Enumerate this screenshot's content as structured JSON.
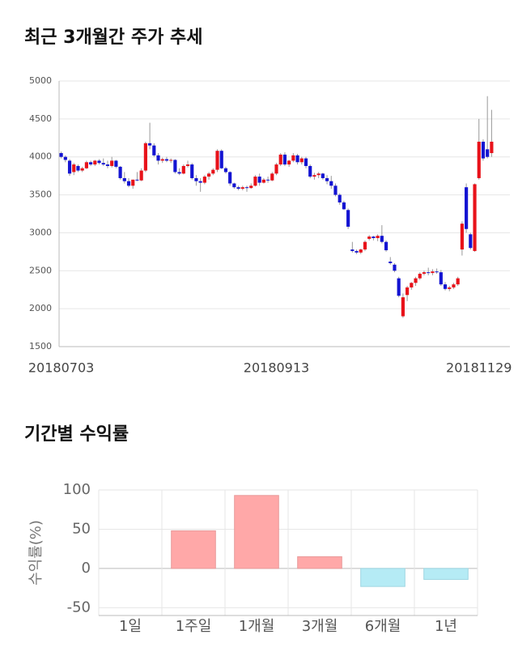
{
  "chart_data": [
    {
      "type": "candlestick",
      "title": "최근 3개월간 주가 추세",
      "categories": [
        "20180703",
        null,
        null,
        null,
        null,
        null,
        null,
        null,
        null,
        null,
        null,
        null,
        null,
        null,
        null,
        null,
        null,
        null,
        null,
        null,
        null,
        null,
        null,
        null,
        null,
        null,
        null,
        null,
        null,
        null,
        null,
        null,
        null,
        null,
        null,
        null,
        null,
        null,
        null,
        null,
        null,
        null,
        null,
        null,
        null,
        null,
        null,
        null,
        null,
        null,
        null,
        "20180913",
        null,
        null,
        null,
        null,
        null,
        null,
        null,
        null,
        null,
        null,
        null,
        null,
        null,
        null,
        null,
        null,
        null,
        null,
        null,
        null,
        null,
        null,
        null,
        null,
        null,
        null,
        null,
        null,
        null,
        null,
        null,
        null,
        null,
        null,
        null,
        null,
        null,
        null,
        null,
        null,
        null,
        null,
        null,
        null,
        null,
        null,
        null,
        "20181129",
        null,
        null,
        null
      ],
      "open": [
        4050,
        4000,
        3950,
        3800,
        3880,
        3820,
        3850,
        3930,
        3900,
        3950,
        3920,
        3900,
        3880,
        3950,
        3870,
        3720,
        3680,
        3620,
        3700,
        3690,
        3820,
        4180,
        4150,
        4020,
        3950,
        3970,
        3950,
        3960,
        3800,
        3780,
        3880,
        3900,
        3720,
        3680,
        3660,
        3740,
        3780,
        3830,
        4080,
        3850,
        3800,
        3650,
        3600,
        3580,
        3600,
        3590,
        3620,
        3740,
        3660,
        3700,
        3690,
        3780,
        3900,
        4030,
        3900,
        3950,
        4020,
        3930,
        3980,
        3880,
        3740,
        3760,
        3780,
        3720,
        3680,
        3620,
        3500,
        3400,
        3300,
        2780,
        2760,
        2740,
        2780,
        2920,
        2950,
        2930,
        2960,
        2880,
        2620,
        2580,
        2400,
        1900,
        2180,
        2280,
        2340,
        2400,
        2460,
        2480,
        2470,
        2490,
        2480,
        2320,
        2260,
        2280,
        2320,
        2780,
        3600,
        2980,
        2760,
        3720,
        4200,
        4100,
        4050
      ],
      "high": [
        4070,
        4020,
        3970,
        3920,
        3900,
        3870,
        3950,
        3950,
        3960,
        3970,
        3980,
        3950,
        4000,
        3960,
        3880,
        3800,
        3720,
        3700,
        3800,
        3850,
        4200,
        4450,
        4180,
        4050,
        3990,
        4000,
        3980,
        3970,
        3850,
        3900,
        3950,
        3920,
        3760,
        3720,
        3760,
        3800,
        3850,
        4100,
        4100,
        3870,
        3810,
        3660,
        3620,
        3620,
        3620,
        3650,
        3760,
        3780,
        3720,
        3740,
        3800,
        3920,
        4050,
        4060,
        3960,
        4050,
        4040,
        4000,
        4000,
        3900,
        3790,
        3800,
        3790,
        3760,
        3750,
        3650,
        3520,
        3420,
        3320,
        2880,
        2780,
        2790,
        2900,
        2970,
        2960,
        2980,
        3100,
        2900,
        2680,
        2600,
        2420,
        2200,
        2300,
        2350,
        2420,
        2480,
        2500,
        2540,
        2520,
        2530,
        2510,
        2350,
        2300,
        2340,
        2420,
        3150,
        3650,
        3000,
        3650,
        4500,
        4230,
        4800,
        4620
      ],
      "low": [
        3980,
        3930,
        3750,
        3760,
        3800,
        3800,
        3840,
        3880,
        3880,
        3900,
        3880,
        3850,
        3860,
        3850,
        3700,
        3650,
        3600,
        3580,
        3680,
        3680,
        3800,
        4100,
        4000,
        3900,
        3920,
        3930,
        3920,
        3780,
        3760,
        3770,
        3860,
        3700,
        3620,
        3540,
        3640,
        3700,
        3760,
        3800,
        3840,
        3780,
        3620,
        3580,
        3560,
        3560,
        3540,
        3580,
        3610,
        3620,
        3650,
        3660,
        3680,
        3760,
        3880,
        3880,
        3870,
        3930,
        3900,
        3900,
        3850,
        3720,
        3700,
        3720,
        3700,
        3640,
        3580,
        3480,
        3370,
        3300,
        3050,
        2740,
        2720,
        2720,
        2760,
        2900,
        2900,
        2890,
        2860,
        2750,
        2580,
        2480,
        2150,
        1880,
        2100,
        2250,
        2300,
        2380,
        2440,
        2440,
        2440,
        2460,
        2300,
        2240,
        2230,
        2260,
        2300,
        2700,
        3000,
        2780,
        2750,
        3700,
        3950,
        3980,
        4000
      ],
      "close": [
        4000,
        3960,
        3780,
        3900,
        3820,
        3850,
        3930,
        3900,
        3950,
        3920,
        3900,
        3880,
        3950,
        3870,
        3720,
        3680,
        3620,
        3700,
        3690,
        3820,
        4180,
        4150,
        4020,
        3950,
        3970,
        3950,
        3960,
        3800,
        3780,
        3880,
        3900,
        3720,
        3680,
        3660,
        3740,
        3780,
        3830,
        4080,
        3850,
        3800,
        3650,
        3600,
        3580,
        3600,
        3590,
        3620,
        3740,
        3660,
        3700,
        3690,
        3780,
        3900,
        4030,
        3900,
        3950,
        4020,
        3930,
        3980,
        3880,
        3740,
        3760,
        3780,
        3720,
        3680,
        3620,
        3500,
        3400,
        3310,
        3080,
        2760,
        2740,
        2780,
        2880,
        2950,
        2930,
        2960,
        2880,
        2770,
        2600,
        2500,
        2170,
        2150,
        2280,
        2340,
        2400,
        2460,
        2480,
        2470,
        2490,
        2480,
        2320,
        2260,
        2280,
        2320,
        2400,
        3120,
        3050,
        2800,
        3640,
        4200,
        3980,
        4000,
        4200
      ],
      "up_color": "#e8121a",
      "down_color": "#1414d2",
      "ylim": [
        1500,
        5000
      ],
      "yticks": [
        1500,
        2000,
        2500,
        3000,
        3500,
        4000,
        4500,
        5000
      ],
      "grid": true
    },
    {
      "type": "bar",
      "title": "기간별 수익률",
      "ylabel": "수익률(%)",
      "categories": [
        "1일",
        "1주일",
        "1개월",
        "3개월",
        "6개월",
        "1년"
      ],
      "values": [
        0,
        48,
        93,
        15,
        -23,
        -14
      ],
      "positive_color": "#ffa8a8",
      "negative_color": "#b5ebf5",
      "ylim": [
        -60,
        100
      ],
      "yticks": [
        -50,
        0,
        50,
        100
      ],
      "grid": true
    }
  ]
}
